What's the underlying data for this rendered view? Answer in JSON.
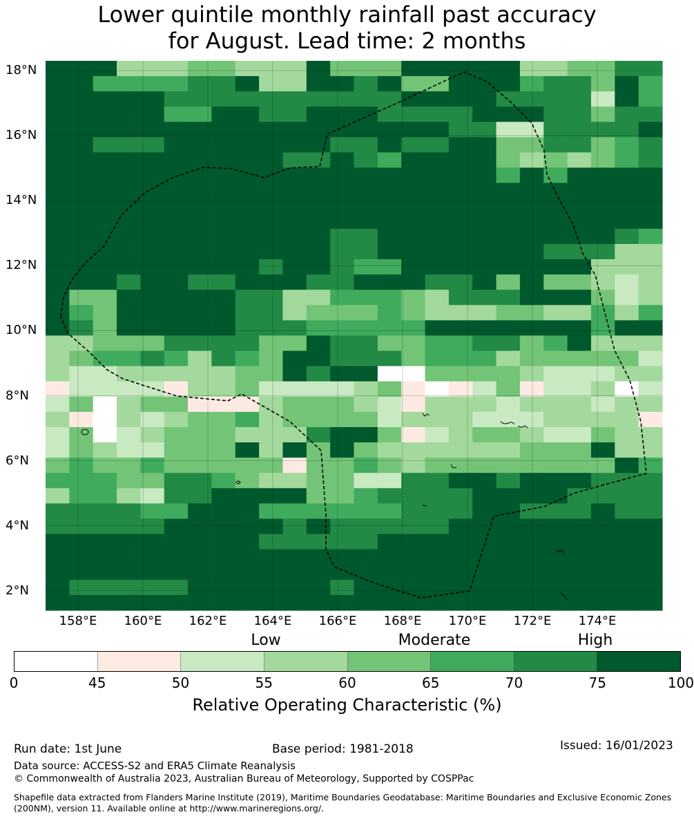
{
  "title": {
    "line1": "Lower quintile monthly rainfall past accuracy",
    "line2": "for August. Lead time: 2 months"
  },
  "map": {
    "lon_range": [
      157,
      176
    ],
    "lat_range": [
      1.4,
      18.3
    ],
    "lat_ticks": [
      "18°N",
      "16°N",
      "14°N",
      "12°N",
      "10°N",
      "8°N",
      "6°N",
      "4°N",
      "2°N"
    ],
    "lon_ticks": [
      "158°E",
      "160°E",
      "162°E",
      "164°E",
      "166°E",
      "168°E",
      "170°E",
      "172°E",
      "174°E"
    ],
    "boundary_color": "#000000",
    "grid": true
  },
  "colorbar": {
    "categories": [
      "Low",
      "Moderate",
      "High"
    ],
    "ticks": [
      "0",
      "45",
      "50",
      "55",
      "60",
      "65",
      "70",
      "75",
      "100"
    ],
    "colors": [
      "#ffffff",
      "#fdebe3",
      "#c8e9c2",
      "#a3d99c",
      "#73c476",
      "#40ab5d",
      "#228a45",
      "#00582d"
    ],
    "label": "Relative Operating Characteristic (%)"
  },
  "footer": {
    "run_date": "Run date: 1st June",
    "base_period": "Base period: 1981-2018",
    "issued": "Issued: 16/01/2023",
    "data_source": "Data source: ACCESS-S2 and ERA5 Climate Reanalysis",
    "copyright": "© Commonwealth of Australia 2023, Australian Bureau of Meteorology, Supported by COSPPac",
    "shapefile": "Shapefile data extracted from Flanders Marine Institute (2019), Maritime Boundaries Geodatabase: Maritime Boundaries and Exclusive Economic Zones (200NM), version 11. Available online at http://www.marineregions.org/."
  },
  "grid_data": {
    "cell_size_deg": 0.8,
    "rows_from_north": [
      "77733344333744477777334466",
      "77555566733776744777566475",
      "77777666666666677776666275",
      "77777557766777666677766466",
      "77777777777777777662266667",
      "77666777777766766774466456",
      "77777777776676577774343456",
      "77777777777777777775757777",
      "77777777777777777777777777",
      "77777777777777777777777777",
      "77777777777777777777777777",
      "77777777777766777777777765",
      "77777777777766777777766633",
      "77777777767765577777777333",
      "77767766777667776674744323",
      "74477777663355543666777423",
      "75477777663444543334433535",
      "76477777666555557777777577",
      "33444666644766445566457333",
      "34556536547766645553444442",
      "32233333447677004444322233",
      "12222133422223410124122302",
      "24034411134443213332333233",
      "31032344534444233322233331",
      "24023444333677412344322433",
      "24322444737474333333444733",
      "45445444441445434444444475",
      "55544665433442266776777666",
      "35532667777445666677776666",
      "66665577755555566677666766",
      "66666777776766666777777777",
      "77777777766666777777777777",
      "77777777777777777777777777",
      "77777777777777777777777777",
      "76666677777767777777777777",
      "77777777777777777777777777"
    ]
  }
}
